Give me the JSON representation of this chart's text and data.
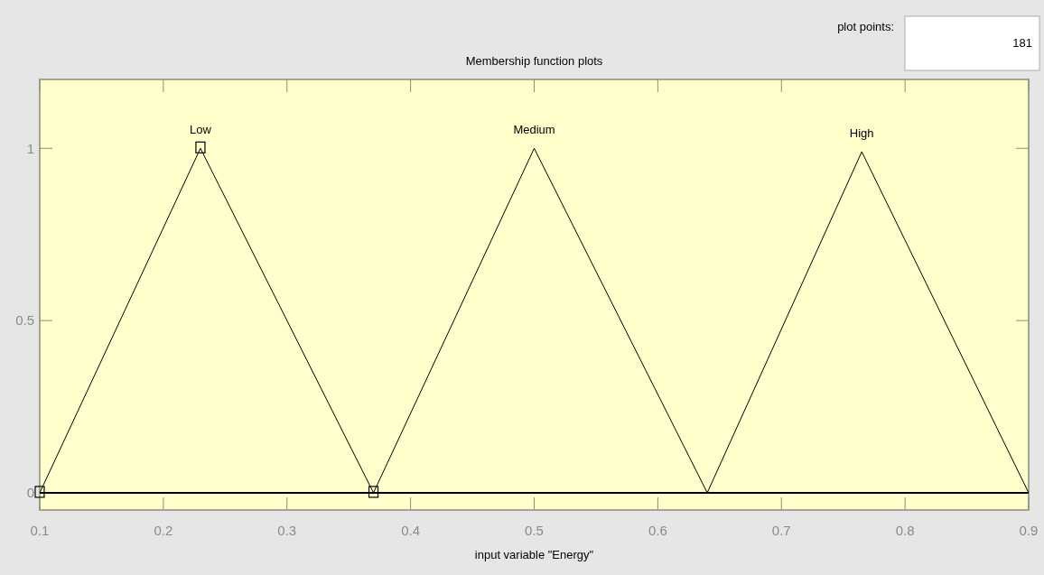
{
  "chart_data": {
    "type": "line",
    "title": "Membership function plots",
    "xlabel": "input variable \"Energy\"",
    "xlim": [
      0.1,
      0.9
    ],
    "xticks": [
      0.1,
      0.2,
      0.3,
      0.4,
      0.5,
      0.6,
      0.7,
      0.8,
      0.9
    ],
    "ylim": [
      -0.05,
      1.2
    ],
    "yticks": [
      0,
      0.5,
      1
    ],
    "series": [
      {
        "name": "Low",
        "color": "#000000",
        "x": [
          0.1,
          0.23,
          0.37
        ],
        "values": [
          0,
          1,
          0
        ],
        "marker": "square"
      },
      {
        "name": "Medium",
        "color": "#000000",
        "x": [
          0.37,
          0.5,
          0.64
        ],
        "values": [
          0,
          1,
          0
        ]
      },
      {
        "name": "High",
        "color": "#000000",
        "x": [
          0.64,
          0.765,
          0.9
        ],
        "values": [
          0,
          0.99,
          0
        ]
      }
    ],
    "ref_lines": [
      {
        "axis": "y",
        "value": 0,
        "color": "#000000"
      }
    ],
    "annotations": [
      "plot points:",
      "181"
    ],
    "grid": false
  }
}
